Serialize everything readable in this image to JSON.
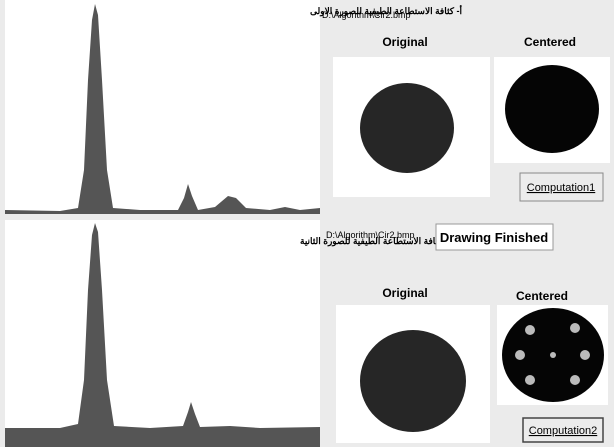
{
  "panels": [
    {
      "caption": "أ- كثافة الاستطاعة الطيفية للصورة الاولى",
      "path": "D:\\Algorithm\\Cir2.bmp",
      "original_label": "Original",
      "centered_label": "Centered",
      "button": "Computation1"
    },
    {
      "caption": "ب- كثافة الاستطاعة الطيفية للصورة الثانية",
      "path": "D:\\Algorithm\\Cir2.bmp",
      "original_label": "Original",
      "centered_label": "Centered",
      "button": "Computation2"
    }
  ],
  "status": "Drawing Finished"
}
